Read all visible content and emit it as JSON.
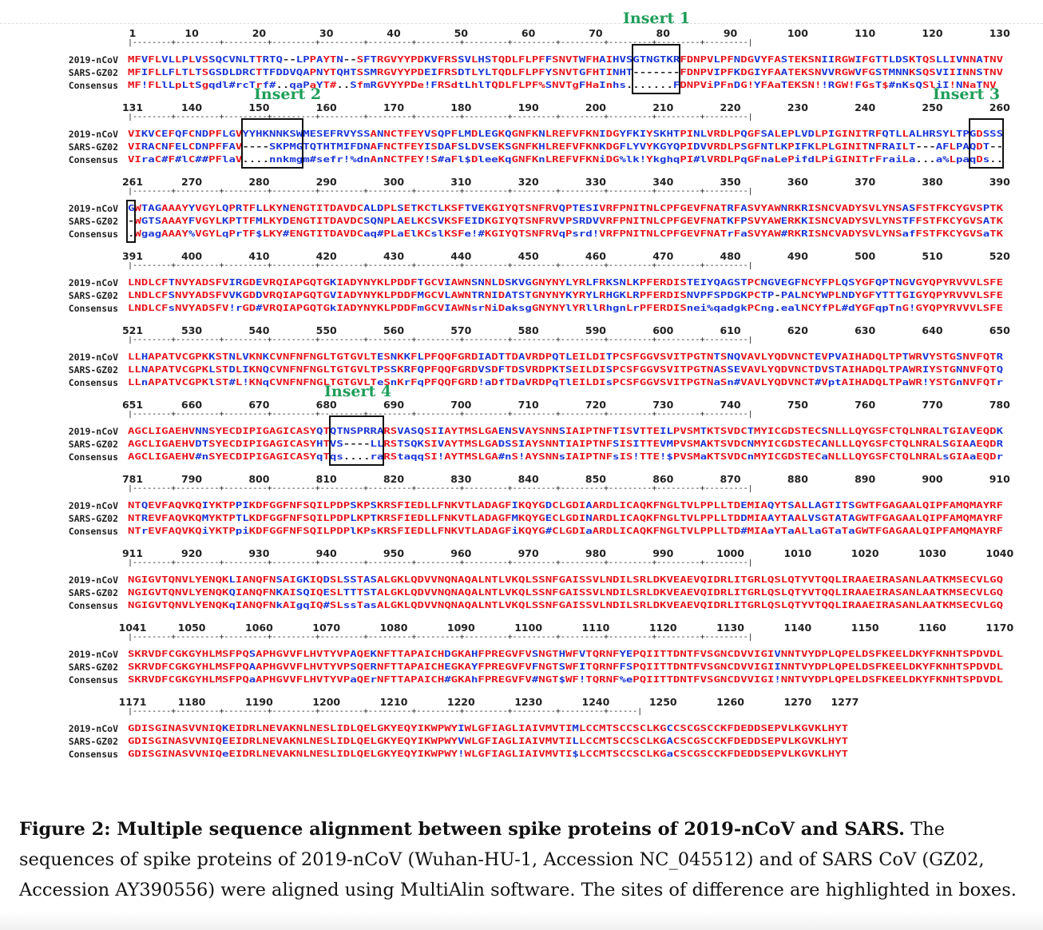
{
  "alignment": {
    "seq_labels": [
      "2019-nCoV",
      "SARS-GZ02",
      "Consensus"
    ],
    "colors": {
      "high": "#e8141c",
      "low": "#1a35d6",
      "neutral": "#222222",
      "insert_title": "#1e9e5a"
    },
    "blocks": [
      {
        "ticks": [
          "1",
          "10",
          "20",
          "30",
          "40",
          "50",
          "60",
          "70",
          "80",
          "90",
          "100",
          "110",
          "120",
          "130"
        ],
        "rows": [
          "MFVFLVLLPLVSSQCVNLTTRTQ--LPPAYTN--SFTRGVYYPDKVFRSSVLHSTQDLFLPFFSNVTWFHAIHVSGTNGTKRFDNPVLPFNDGVYFASTEKSNIIRGWIFGTTLDSKTQSLLIVNNATNV",
          "MFIFLLFLTLTSGSDLDRCTTFDDVQAPNYTQHTSSMRGVYYPDEIFRSDTLYLTQDLFLPFYSNVTGFHTINHT-------FDNPVIPFKDGIYFAATEKSNVVRGWVFGSTMNNKSQSVIIINNSTNV",
          "MF!FLlLpLtSgqdl#rcTrf#..qaPaYT#..SfmRGVYYPDe!FRSdtLhlTQDLFLPF%SNVTgFHaInhs.......FDNPViPFnDG!YFAaTEKSN!!RGW!FGsT$#nKsQSliI!NNaTNV"
        ]
      },
      {
        "ticks": [
          "131",
          "140",
          "150",
          "160",
          "170",
          "180",
          "190",
          "200",
          "210",
          "220",
          "230",
          "240",
          "250",
          "260"
        ],
        "rows": [
          "VIKVCEFQFCNDPFLGVYYHKNNKSWMESEFRVYSSANNCTFEYVSQPFLMDLEGKQGNFKNLREFVFKNIDGYFKIYSKHTPINLVRDLPQGFSALEPLVDLPIGINITRFQTLLALHRSYLTPGDSSS",
          "VIRACNFELCDNPFFAV----SKPMGTQTHTMIFDNAFNCTFEYISDAFSLDVSEKSGNFKHLREFVFKNKDGFLYVYKGYQPIDVVRDLPSGFNTLKPIFKLPLGINITNFRAILT---AFLPAQDT--",
          "VIraC#F#lC##PFlaV....nnkmgm#sefr!%dnAnNCTFEY!S#aFl$DleeKqGNFKnLREFVFKNiDG%lk!YkghqPI#lVRDLPqGFnaLePifdLPiGINITrFraiLa...a%LpaqDs.."
        ]
      },
      {
        "ticks": [
          "261",
          "270",
          "280",
          "290",
          "300",
          "310",
          "320",
          "330",
          "340",
          "350",
          "360",
          "370",
          "380",
          "390"
        ],
        "rows": [
          "GWTAGAAAYYVGYLQPRTFLLKYNENGTITDAVDCALDPLSETKCTLKSFTVEKGIYQTSNFRVQPTESIVRFPNITNLCPFGEVFNATRFASVYAWNRKRISNCVADYSVLYNSASFSTFKCYGVSPTK",
          "-WGTSAAAYFVGYLKPTTFMLKYDENGTITDAVDCSQNPLAELKCSVKSFEIDKGIYQTSNFRVVPSRDVVRFPNITNLCPFGEVFNATKFPSVYAWERKKISNCVADYSVLYNSTFFSTFKCYGVSATK",
          ".WgagAAAY%VGYLqPrTF$LKY#ENGTITDAVDCaq#PLaElKCslKSFe!#KGIYQTSNFRVqPsrd!VRFPNITNLCPFGEVFNATrFaSVYAW#RKRISNCVADYSVLYNSafFSTFKCYGVSaTK"
        ]
      },
      {
        "ticks": [
          "391",
          "400",
          "410",
          "420",
          "430",
          "440",
          "450",
          "460",
          "470",
          "480",
          "490",
          "500",
          "510",
          "520"
        ],
        "rows": [
          "LNDLCFTNVYADSFVIRGDEVRQIAPGQTGKIADYNYKLPDDFTGCVIAWNSNNLDSKVGGNYNYLYRLFRKSNLKPFERDISTEIYQAGSTPCNGVEGFNCYFPLQSYGFQPTNGVGYQPYRVVVLSFE",
          "LNDLCFSNVYADSFVVKGDDVRQIAPGQTGVIADYNYKLPDDFMGCVLAWNTRNIDATSTGNYNYKYRYLRHGKLRPFERDISNVPFSPDGKPCTP-PALNCYWPLNDYGFYTTTGIGYQPYRVVVLSFE",
          "LNDLCFsNVYADSFV!rGD#VRQIAPGQTGkIADYNYKLPDDFmGCVIAWNsrNiDaksgGNYNYlYRllRhgnLrPFERDISnei%qadgkPCng.ealNCYfPL#dYGFqpTnG!GYQPYRVVVLSFE"
        ]
      },
      {
        "ticks": [
          "521",
          "530",
          "540",
          "550",
          "560",
          "570",
          "580",
          "590",
          "600",
          "610",
          "620",
          "630",
          "640",
          "650"
        ],
        "rows": [
          "LLHAPATVCGPKKSTNLVKNKCVNFNFNGLTGTGVLTESNKKFLPFQQFGRDIADTTDAVRDPQTLEILDITPCSFGGVSVITPGTNTSNQVAVLYQDVNCTEVPVAIHADQLTPTWRVYSTGSNVFQTR",
          "LLNAPATVCGPKLSTDLIKNQCVNFNFNGLTGTGVLTPSSKRFQPFQQFGRDVSDFTDSVRDPKTSEILDISPCSFGGVSVITPGTNASSEVAVLYQDVNCTDVSTAIHADQLTPAWRIYSTGNNVFQTQ",
          "LLnAPATVCGPKlST#L!KNqCVNFNFNGLTGTGVLTeSnKrFqPFQQFGRD!aDfTDaVRDPqTlEILDIsPCSFGGVSVITPGTNaSn#VAVLYQDVNCT#VptAIHADQLTPaWR!YSTGnNVFQTr"
        ]
      },
      {
        "ticks": [
          "651",
          "660",
          "670",
          "680",
          "690",
          "700",
          "710",
          "720",
          "730",
          "740",
          "750",
          "760",
          "770",
          "780"
        ],
        "rows": [
          "AGCLIGAEHVNNSYECDIPIGAGICASYQTQTNSPRRARSVASQSIIAYTMSLGAENSVAYSNNSIAIPTNFTISVTTEILPVSMTKTSVDCTMYICGDSTECSNLLLQYGSFCTQLNRALTGIAVEQDK",
          "AGCLIGAEHVDTSYECDIPIGAGICASYHTVS----LLRSTSQKSIVAYTMSLGADSSIAYSNNTIAIPTNFSISITTEVMPVSMAKTSVDCNMYICGDSTECANLLLQYGSFCTQLNRALSGIAAEQDR",
          "AGCLIGAEHV#nSYECDIPIGAGICASYqTqs....raRStaqqSI!AYTMSLGA#nS!AYSNNsIAIPTNFsIS!TTE!$PVSMaKTSVDCnMYICGDSTECaNLLLQYGSFCTQLNRALsGIAaEQDr"
        ]
      },
      {
        "ticks": [
          "781",
          "790",
          "800",
          "810",
          "820",
          "830",
          "840",
          "850",
          "860",
          "870",
          "880",
          "890",
          "900",
          "910"
        ],
        "rows": [
          "NTQEVFAQVKQIYKTPPIKDFGGFNFSQILPDPSKPSKRSFIEDLLFNKVTLADAGFIKQYGDCLGDIAARDLICAQKFNGLTVLPPLLTDEMIAQYTSALLAGTITSGWTFGAGAALQIPFAMQMAYRF",
          "NTREVFAQVKQMYKTPTLKDFGGFNFSQILPDPLKPTKRSFIEDLLFNKVTLADAGFMKQYGECLGDINARDLICAQKFNGLTVLPPLLTDDMIAAYTAALVSGTATAGWTFGAGAALQIPFAMQMAYRF",
          "NTrEVFAQVKQiYKTPpiKDFGGFNFSQILPDPlKPsKRSFIEDLLFNKVTLADAGFiKQYG#CLGDIaARDLICAQKFNGLTVLPPLLTD#MIAaYTaALlaGTaTaGWTFGAGAALQIPFAMQMAYRF"
        ]
      },
      {
        "ticks": [
          "911",
          "920",
          "930",
          "940",
          "950",
          "960",
          "970",
          "980",
          "990",
          "1000",
          "1010",
          "1020",
          "1030",
          "1040"
        ],
        "rows": [
          "NGIGVTQNVLYENQKLIANQFNSAIGKIQDSLSSTASALGKLQDVVNQNAQALNTLVKQLSSNFGAISSVLNDILSRLDKVEAEVQIDRLITGRLQSLQTYVTQQLIRAAEIRASANLAATKMSECVLGQ",
          "NGIGVTQNVLYENQKQIANQFNKAISQIQESLTTTSTALGKLQDVVNQNAQALNTLVKQLSSNFGAISSVLNDILSRLDKVEAEVQIDRLITGRLQSLQTYVTQQLIRAAEIRASANLAATKMSECVLGQ",
          "NGIGVTQNVLYENQKqIANQFNkAIgqIQ#SLssTasALGKLQDVVNQNAQALNTLVKQLSSNFGAISSVLNDILSRLDKVEAEVQIDRLITGRLQSLQTYVTQQLIRAAEIRASANLAATKMSECVLGQ"
        ]
      },
      {
        "ticks": [
          "1041",
          "1050",
          "1060",
          "1070",
          "1080",
          "1090",
          "1100",
          "1110",
          "1120",
          "1130",
          "1140",
          "1150",
          "1160",
          "1170"
        ],
        "rows": [
          "SKRVDFCGKGYHLMSFPQSAPHGVVFLHVTYVPAQEKNFTTAPAICHDGKAHFPREGVFVSNGTHWFVTQRNFYEPQIITTDNTFVSGNCDVVIGIVNNTVYDPLQPELDSFKEELDKYFKNHTSPDVDL",
          "SKRVDFCGKGYHLMSFPQAAPHGVVFLHVTYVPSQERNFTTAPAICHEGKAYFPREGVFVFNGTSWFITQRNFFSPQIITTDNTFVSGNCDVVIGIINNTVYDPLQPELDSFKEELDKYFKNHTSPDVDL",
          "SKRVDFCGKGYHLMSFPQaAPHGVVFLHVTYVPaQErNFTTAPAICH#GKAhFPREGVFV#NGT$WF!TQRNF%ePQIITTDNTFVSGNCDVVIGI!NNTVYDPLQPELDSFKEELDKYFKNHTSPDVDL"
        ]
      },
      {
        "ticks": [
          "1171",
          "1180",
          "1190",
          "1200",
          "1210",
          "1220",
          "1230",
          "1240",
          "1250",
          "1260",
          "1270",
          "1277"
        ],
        "rows": [
          "GDISGINASVVNIQKEIDRLNEVAKNLNESLIDLQELGKYEQYIKWPWYIWLGFIAGLIAIVMVTIMLCCMTSCCSCLKGCCSCGSCCKFDEDDSEPVLKGVKLHYT",
          "GDISGINASVVNIQEEIDRLNEVAKNLNESLIDLQELGKYEQYIKWPWYVWLGFIAGLIAIVMVTILLCCMTSCCSCLKGACSCGSCCKFDEDDSEPVLKGVKLHYT",
          "GDISGINASVVNIQeEIDRLNEVAKNLNESLIDLQELGKYEQYIKWPWY!WLGFIAGLIAIVMVTI$LCCMTSCCSCLKGaCSCGSCCKFDEDDSEPVLKGVKLHYT"
        ]
      }
    ],
    "inserts": [
      {
        "label": "Insert 1"
      },
      {
        "label": "Insert 2"
      },
      {
        "label": "Insert 3"
      },
      {
        "label": "Insert 4"
      }
    ]
  },
  "caption": {
    "bold": "Figure 2: Multiple sequence alignment between spike proteins of 2019-nCoV and SARS.",
    "text": " The sequences of spike proteins of 2019-nCoV (Wuhan-HU-1, Accession NC_045512) and of SARS CoV (GZ02, Accession AY390556) were aligned using MultiAlin software. The sites of difference are highlighted in  boxes."
  }
}
